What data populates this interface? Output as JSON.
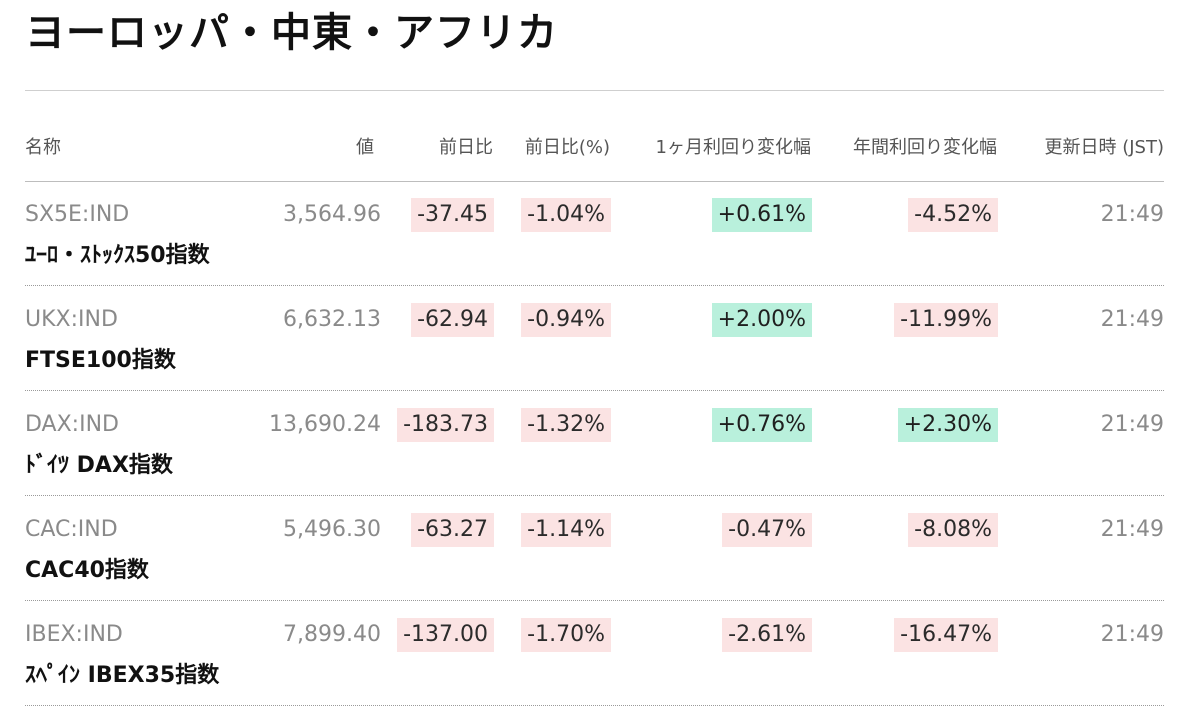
{
  "page_title": "ヨーロッパ・中東・アフリカ",
  "headers": {
    "name": "名称",
    "value": "値",
    "change": "前日比",
    "change_pct": "前日比(%)",
    "yield_1m": "1ヶ月利回り変化幅",
    "yield_1y": "年間利回り変化幅",
    "updated": "更新日時 (JST)"
  },
  "rows": [
    {
      "ticker": "SX5E:IND",
      "name": "ﾕｰﾛ・ｽﾄｯｸｽ50指数",
      "value": "3,564.96",
      "change": "-37.45",
      "change_pct": "-1.04%",
      "yield_1m": "+0.61%",
      "yield_1y": "-4.52%",
      "time": "21:49"
    },
    {
      "ticker": "UKX:IND",
      "name": "FTSE100指数",
      "value": "6,632.13",
      "change": "-62.94",
      "change_pct": "-0.94%",
      "yield_1m": "+2.00%",
      "yield_1y": "-11.99%",
      "time": "21:49"
    },
    {
      "ticker": "DAX:IND",
      "name": "ﾄﾞｲﾂ DAX指数",
      "value": "13,690.24",
      "change": "-183.73",
      "change_pct": "-1.32%",
      "yield_1m": "+0.76%",
      "yield_1y": "+2.30%",
      "time": "21:49"
    },
    {
      "ticker": "CAC:IND",
      "name": "CAC40指数",
      "value": "5,496.30",
      "change": "-63.27",
      "change_pct": "-1.14%",
      "yield_1m": "-0.47%",
      "yield_1y": "-8.08%",
      "time": "21:49"
    },
    {
      "ticker": "IBEX:IND",
      "name": "ｽﾍﾟｲﾝ IBEX35指数",
      "value": "7,899.40",
      "change": "-137.00",
      "change_pct": "-1.70%",
      "yield_1m": "-2.61%",
      "yield_1y": "-16.47%",
      "time": "21:49"
    }
  ],
  "colors": {
    "negative_bg": "#fbe3e3",
    "positive_bg": "#b9f0dc",
    "muted_text": "#8a8a8a"
  }
}
